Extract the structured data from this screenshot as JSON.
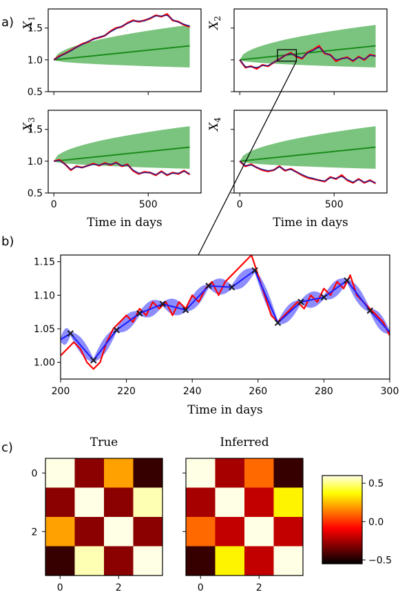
{
  "panel_labels": {
    "a": "a)",
    "b": "b)",
    "c": "c)"
  },
  "chart_data": [
    {
      "id": "a1",
      "type": "line",
      "ylabel_main": "X",
      "ylabel_sub": "1",
      "xlim": [
        -30,
        780
      ],
      "ylim": [
        0.5,
        1.8
      ],
      "xticks": [
        0,
        500
      ],
      "yticks": [
        0.5,
        1.0,
        1.5
      ],
      "ytick_labels": [
        "0.5",
        "1.0",
        "1.5"
      ],
      "band": {
        "x": [
          0,
          720
        ],
        "mean_end": 1.22,
        "upper_end": 1.55,
        "lower_end": 0.88
      },
      "series": [
        {
          "role": "data",
          "color": "#ff0000",
          "x": [
            0,
            30,
            60,
            90,
            120,
            150,
            180,
            210,
            240,
            270,
            300,
            330,
            360,
            390,
            420,
            450,
            480,
            510,
            540,
            570,
            600,
            630,
            660,
            690,
            720
          ],
          "y": [
            1.0,
            1.06,
            1.1,
            1.15,
            1.2,
            1.25,
            1.28,
            1.33,
            1.35,
            1.38,
            1.45,
            1.5,
            1.52,
            1.58,
            1.62,
            1.6,
            1.62,
            1.65,
            1.7,
            1.68,
            1.72,
            1.62,
            1.6,
            1.55,
            1.52
          ]
        },
        {
          "role": "fit",
          "color": "#1f1f8f",
          "x": [
            0,
            30,
            60,
            90,
            120,
            150,
            180,
            210,
            240,
            270,
            300,
            330,
            360,
            390,
            420,
            450,
            480,
            510,
            540,
            570,
            600,
            630,
            660,
            690,
            720
          ],
          "y": [
            1.0,
            1.05,
            1.1,
            1.14,
            1.2,
            1.24,
            1.29,
            1.32,
            1.36,
            1.38,
            1.44,
            1.49,
            1.53,
            1.57,
            1.61,
            1.61,
            1.61,
            1.66,
            1.69,
            1.69,
            1.7,
            1.63,
            1.59,
            1.56,
            1.53
          ]
        }
      ]
    },
    {
      "id": "a2",
      "type": "line",
      "ylabel_main": "X",
      "ylabel_sub": "2",
      "xlim": [
        -30,
        780
      ],
      "ylim": [
        0.5,
        1.8
      ],
      "xticks": [
        0,
        500
      ],
      "yticks": [
        0.5,
        1.0,
        1.5
      ],
      "ytick_labels": [],
      "band": {
        "x": [
          0,
          720
        ],
        "mean_end": 1.22,
        "upper_end": 1.55,
        "lower_end": 0.88
      },
      "zoom_box": {
        "x": [
          200,
          300
        ],
        "y": [
          0.98,
          1.16
        ]
      },
      "series": [
        {
          "role": "data",
          "color": "#ff0000",
          "x": [
            0,
            30,
            60,
            90,
            120,
            150,
            180,
            210,
            240,
            270,
            300,
            330,
            360,
            390,
            420,
            450,
            480,
            510,
            540,
            570,
            600,
            630,
            660,
            690,
            720
          ],
          "y": [
            1.0,
            0.88,
            0.9,
            0.86,
            0.92,
            0.9,
            0.96,
            1.01,
            1.07,
            1.11,
            1.05,
            1.02,
            1.12,
            1.16,
            1.22,
            1.1,
            1.08,
            0.98,
            1.02,
            1.04,
            0.98,
            1.05,
            1.0,
            1.08,
            1.06
          ]
        },
        {
          "role": "fit",
          "color": "#1f1f8f",
          "x": [
            0,
            30,
            60,
            90,
            120,
            150,
            180,
            210,
            240,
            270,
            300,
            330,
            360,
            390,
            420,
            450,
            480,
            510,
            540,
            570,
            600,
            630,
            660,
            690,
            720
          ],
          "y": [
            1.0,
            0.89,
            0.89,
            0.88,
            0.91,
            0.91,
            0.96,
            1.01,
            1.07,
            1.1,
            1.06,
            1.03,
            1.11,
            1.15,
            1.2,
            1.11,
            1.07,
            1.0,
            1.02,
            1.03,
            0.99,
            1.04,
            1.01,
            1.07,
            1.06
          ]
        }
      ]
    },
    {
      "id": "a3",
      "type": "line",
      "ylabel_main": "X",
      "ylabel_sub": "3",
      "xlim": [
        -30,
        780
      ],
      "ylim": [
        0.5,
        1.8
      ],
      "xticks": [
        0,
        500
      ],
      "xtick_labels": [
        "0",
        "500"
      ],
      "xlabel": "Time in days",
      "yticks": [
        0.5,
        1.0,
        1.5
      ],
      "ytick_labels": [
        "0.5",
        "1.0",
        "1.5"
      ],
      "band": {
        "x": [
          0,
          720
        ],
        "mean_end": 1.22,
        "upper_end": 1.55,
        "lower_end": 0.88
      },
      "series": [
        {
          "role": "data",
          "color": "#ff0000",
          "x": [
            0,
            30,
            60,
            90,
            120,
            150,
            180,
            210,
            240,
            270,
            300,
            330,
            360,
            390,
            420,
            450,
            480,
            510,
            540,
            570,
            600,
            630,
            660,
            690,
            720
          ],
          "y": [
            1.0,
            1.02,
            0.95,
            0.86,
            0.92,
            0.9,
            0.93,
            0.96,
            0.93,
            0.97,
            0.94,
            0.98,
            0.92,
            0.95,
            0.85,
            0.8,
            0.83,
            0.82,
            0.78,
            0.84,
            0.78,
            0.82,
            0.8,
            0.85,
            0.79
          ]
        },
        {
          "role": "fit",
          "color": "#1f1f8f",
          "x": [
            0,
            30,
            60,
            90,
            120,
            150,
            180,
            210,
            240,
            270,
            300,
            330,
            360,
            390,
            420,
            450,
            480,
            510,
            540,
            570,
            600,
            630,
            660,
            690,
            720
          ],
          "y": [
            1.0,
            1.01,
            0.95,
            0.87,
            0.91,
            0.9,
            0.93,
            0.95,
            0.94,
            0.96,
            0.95,
            0.97,
            0.93,
            0.94,
            0.86,
            0.81,
            0.82,
            0.82,
            0.79,
            0.83,
            0.79,
            0.81,
            0.81,
            0.84,
            0.8
          ]
        }
      ]
    },
    {
      "id": "a4",
      "type": "line",
      "ylabel_main": "X",
      "ylabel_sub": "4",
      "xlim": [
        -30,
        780
      ],
      "ylim": [
        0.5,
        1.8
      ],
      "xticks": [
        0,
        500
      ],
      "xtick_labels": [
        "0",
        "500"
      ],
      "xlabel": "Time in days",
      "yticks": [
        0.5,
        1.0,
        1.5
      ],
      "ytick_labels": [],
      "band": {
        "x": [
          0,
          720
        ],
        "mean_end": 1.22,
        "upper_end": 1.55,
        "lower_end": 0.88
      },
      "series": [
        {
          "role": "data",
          "color": "#ff0000",
          "x": [
            0,
            30,
            60,
            90,
            120,
            150,
            180,
            210,
            240,
            270,
            300,
            330,
            360,
            390,
            420,
            450,
            480,
            510,
            540,
            570,
            600,
            630,
            660,
            690,
            720
          ],
          "y": [
            1.0,
            0.92,
            0.95,
            0.9,
            0.86,
            0.84,
            0.86,
            0.92,
            0.85,
            0.88,
            0.83,
            0.78,
            0.74,
            0.72,
            0.7,
            0.68,
            0.75,
            0.72,
            0.78,
            0.7,
            0.66,
            0.72,
            0.66,
            0.7,
            0.65
          ]
        },
        {
          "role": "fit",
          "color": "#1f1f8f",
          "x": [
            0,
            30,
            60,
            90,
            120,
            150,
            180,
            210,
            240,
            270,
            300,
            330,
            360,
            390,
            420,
            450,
            480,
            510,
            540,
            570,
            600,
            630,
            660,
            690,
            720
          ],
          "y": [
            1.0,
            0.93,
            0.94,
            0.9,
            0.87,
            0.85,
            0.86,
            0.91,
            0.86,
            0.87,
            0.83,
            0.79,
            0.75,
            0.73,
            0.7,
            0.69,
            0.74,
            0.73,
            0.76,
            0.71,
            0.67,
            0.71,
            0.67,
            0.69,
            0.66
          ]
        }
      ]
    },
    {
      "id": "b",
      "type": "line",
      "xlim": [
        200,
        300
      ],
      "ylim": [
        0.975,
        1.16
      ],
      "xticks": [
        200,
        220,
        240,
        260,
        280,
        300
      ],
      "xtick_labels": [
        "200",
        "220",
        "240",
        "260",
        "280",
        "300"
      ],
      "xlabel": "Time in days",
      "yticks": [
        1.0,
        1.05,
        1.1,
        1.15
      ],
      "ytick_labels": [
        "1.00",
        "1.05",
        "1.10",
        "1.15"
      ],
      "series": [
        {
          "role": "data",
          "color": "#ff0000",
          "x": [
            200,
            202,
            204,
            206,
            208,
            210,
            212,
            214,
            216,
            218,
            220,
            222,
            224,
            226,
            228,
            230,
            232,
            234,
            236,
            238,
            240,
            242,
            244,
            246,
            248,
            250,
            252,
            254,
            256,
            258,
            260,
            262,
            264,
            266,
            268,
            270,
            272,
            274,
            276,
            278,
            280,
            282,
            284,
            286,
            288,
            290,
            292,
            294,
            296,
            298,
            300
          ],
          "y": [
            1.01,
            1.02,
            1.03,
            1.02,
            1.0,
            0.99,
            1.0,
            1.03,
            1.05,
            1.06,
            1.07,
            1.06,
            1.08,
            1.07,
            1.09,
            1.08,
            1.09,
            1.07,
            1.09,
            1.08,
            1.1,
            1.09,
            1.11,
            1.12,
            1.1,
            1.12,
            1.13,
            1.14,
            1.15,
            1.16,
            1.13,
            1.1,
            1.07,
            1.06,
            1.07,
            1.08,
            1.09,
            1.08,
            1.1,
            1.09,
            1.11,
            1.1,
            1.12,
            1.11,
            1.13,
            1.1,
            1.09,
            1.08,
            1.07,
            1.06,
            1.04
          ]
        }
      ],
      "fit": {
        "color": "#1a1aff",
        "x": [
          200,
          203,
          210,
          217,
          224,
          231,
          238,
          245,
          252,
          259,
          266,
          273,
          280,
          287,
          294,
          300
        ],
        "y": [
          1.034,
          1.043,
          1.003,
          1.048,
          1.073,
          1.087,
          1.078,
          1.114,
          1.112,
          1.137,
          1.059,
          1.09,
          1.097,
          1.122,
          1.077,
          1.045
        ]
      },
      "markers": {
        "symbol": "x",
        "color": "#1a1a1a",
        "x": [
          203,
          210,
          217,
          224,
          231,
          238,
          245,
          252,
          259,
          266,
          273,
          280,
          287,
          294
        ],
        "y": [
          1.043,
          1.003,
          1.048,
          1.073,
          1.087,
          1.078,
          1.114,
          1.112,
          1.137,
          1.059,
          1.09,
          1.097,
          1.122,
          1.077
        ]
      },
      "uncertainty": {
        "color": "#7070ff",
        "max_halfwidth": 0.012
      }
    },
    {
      "id": "c1",
      "type": "heatmap",
      "title": "True",
      "xticks": [
        0,
        2
      ],
      "xtick_labels": [
        "0",
        "2"
      ],
      "yticks": [
        0,
        2
      ],
      "ytick_labels": [
        "0",
        "2"
      ],
      "matrix": [
        [
          0.7,
          -0.3,
          0.2,
          -0.45
        ],
        [
          -0.3,
          0.7,
          -0.3,
          0.55
        ],
        [
          0.2,
          -0.3,
          0.7,
          -0.3
        ],
        [
          -0.45,
          0.55,
          -0.3,
          0.7
        ]
      ]
    },
    {
      "id": "c2",
      "type": "heatmap",
      "title": "Inferred",
      "xticks": [
        0,
        2
      ],
      "xtick_labels": [
        "0",
        "2"
      ],
      "yticks": [
        0,
        2
      ],
      "ytick_labels": [],
      "matrix": [
        [
          0.7,
          -0.25,
          0.1,
          -0.45
        ],
        [
          -0.25,
          0.7,
          -0.2,
          0.35
        ],
        [
          0.1,
          -0.2,
          0.7,
          -0.2
        ],
        [
          -0.45,
          0.35,
          -0.2,
          0.7
        ]
      ]
    },
    {
      "id": "colorbar",
      "type": "colorbar",
      "range": [
        -0.55,
        0.6
      ],
      "ticks": [
        0.5,
        0.0,
        -0.5
      ],
      "tick_labels": [
        "0.5",
        "0.0",
        "−0.5"
      ]
    }
  ]
}
